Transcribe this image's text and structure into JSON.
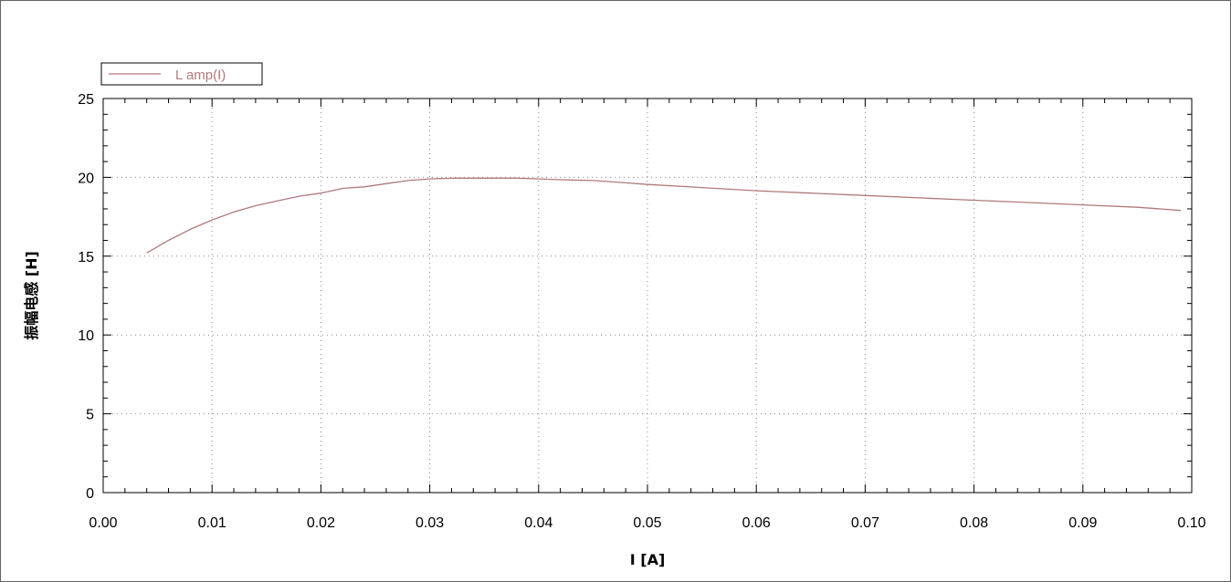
{
  "chart_data": {
    "type": "line",
    "title": "",
    "xlabel": "I [A]",
    "ylabel": "振幅电感 [H]",
    "xlim": [
      0.0,
      0.1
    ],
    "ylim": [
      0,
      25
    ],
    "x_ticks": [
      "0.00",
      "0.01",
      "0.02",
      "0.03",
      "0.04",
      "0.05",
      "0.06",
      "0.07",
      "0.08",
      "0.09",
      "0.10"
    ],
    "y_ticks": [
      "0",
      "5",
      "10",
      "15",
      "20",
      "25"
    ],
    "grid": true,
    "legend_position": "top-left",
    "series": [
      {
        "name": "L amp(I)",
        "color": "#b07a7a",
        "x": [
          0.004,
          0.006,
          0.008,
          0.01,
          0.012,
          0.014,
          0.016,
          0.018,
          0.02,
          0.022,
          0.024,
          0.026,
          0.028,
          0.03,
          0.032,
          0.035,
          0.038,
          0.04,
          0.042,
          0.045,
          0.048,
          0.05,
          0.055,
          0.06,
          0.065,
          0.07,
          0.075,
          0.08,
          0.085,
          0.09,
          0.095,
          0.099
        ],
        "y": [
          15.2,
          16.0,
          16.7,
          17.3,
          17.8,
          18.2,
          18.5,
          18.8,
          19.0,
          19.3,
          19.4,
          19.6,
          19.8,
          19.9,
          19.95,
          19.95,
          19.95,
          19.9,
          19.85,
          19.8,
          19.65,
          19.55,
          19.35,
          19.15,
          19.0,
          18.85,
          18.7,
          18.55,
          18.4,
          18.25,
          18.1,
          17.9
        ]
      }
    ]
  }
}
